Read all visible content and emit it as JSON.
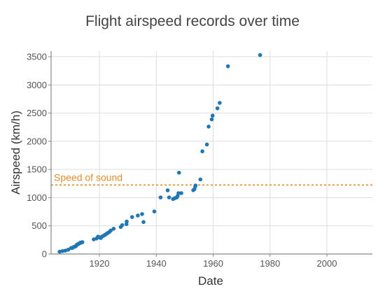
{
  "chart_data": {
    "type": "scatter",
    "title": "Flight airspeed records over time",
    "xlabel": "Date",
    "ylabel": "Airspeed (km/h)",
    "xlim": [
      1903,
      2016
    ],
    "ylim": [
      0,
      3600
    ],
    "xticks": [
      1920,
      1940,
      1960,
      1980,
      2000
    ],
    "yticks": [
      0,
      500,
      1000,
      1500,
      2000,
      2500,
      3000,
      3500
    ],
    "grid": true,
    "point_color": "#1f77b4",
    "reference_line": {
      "label": "Speed of sound",
      "y": 1225,
      "color": "#e08d2b"
    },
    "points": [
      [
        1906,
        41
      ],
      [
        1907,
        52
      ],
      [
        1908,
        60
      ],
      [
        1909,
        77
      ],
      [
        1910,
        106
      ],
      [
        1910.5,
        109
      ],
      [
        1911,
        126
      ],
      [
        1911.5,
        133
      ],
      [
        1911.8,
        145
      ],
      [
        1912,
        163
      ],
      [
        1912.4,
        174
      ],
      [
        1912.7,
        180
      ],
      [
        1913,
        191
      ],
      [
        1913.3,
        203
      ],
      [
        1913.8,
        204
      ],
      [
        1914,
        211
      ],
      [
        1918,
        260
      ],
      [
        1919,
        275
      ],
      [
        1919.5,
        308
      ],
      [
        1920,
        298
      ],
      [
        1920.5,
        284
      ],
      [
        1921,
        313
      ],
      [
        1921.5,
        325
      ],
      [
        1922,
        341
      ],
      [
        1922.5,
        359
      ],
      [
        1923,
        375
      ],
      [
        1923.5,
        392
      ],
      [
        1924,
        417
      ],
      [
        1925,
        448
      ],
      [
        1927.5,
        479
      ],
      [
        1928,
        513
      ],
      [
        1929.5,
        531
      ],
      [
        1929.6,
        576
      ],
      [
        1931.5,
        656
      ],
      [
        1933.5,
        683
      ],
      [
        1935,
        709
      ],
      [
        1935.5,
        567
      ],
      [
        1939.3,
        755
      ],
      [
        1941.5,
        1004
      ],
      [
        1944,
        1130
      ],
      [
        1944.5,
        1004
      ],
      [
        1945.9,
        975
      ],
      [
        1946.5,
        991
      ],
      [
        1947.2,
        1003
      ],
      [
        1947.5,
        1031
      ],
      [
        1947.8,
        1080
      ],
      [
        1948,
        1443
      ],
      [
        1948.8,
        1080
      ],
      [
        1953,
        1132
      ],
      [
        1953.4,
        1150
      ],
      [
        1953.7,
        1200
      ],
      [
        1953.8,
        1216
      ],
      [
        1955.5,
        1323
      ],
      [
        1956.2,
        1822
      ],
      [
        1957.8,
        1943
      ],
      [
        1958.4,
        2260
      ],
      [
        1959.5,
        2388
      ],
      [
        1959.8,
        2455
      ],
      [
        1961.5,
        2585
      ],
      [
        1962.3,
        2681
      ],
      [
        1965.2,
        3331
      ],
      [
        1976.5,
        3529
      ]
    ]
  }
}
